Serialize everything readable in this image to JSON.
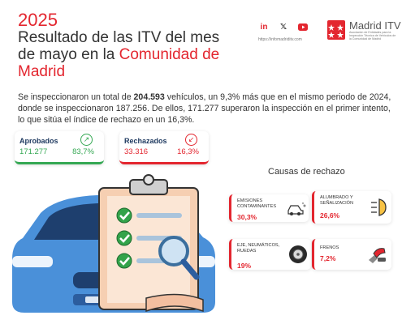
{
  "header": {
    "year": "2025",
    "title_part1": "Resultado de las ITV del mes de mayo en la ",
    "title_highlight": "Comunidad de Madrid"
  },
  "social": {
    "icons": [
      "linkedin-icon",
      "x-icon",
      "youtube-icon"
    ],
    "handle": "https://infomadriditv.com"
  },
  "brand": {
    "name": "Madrid ITV",
    "subtitle": "Asociación de Entidades para la Inspección Técnica de Vehículos de la Comunidad de Madrid"
  },
  "summary": {
    "part1": "Se inspeccionaron un total de ",
    "total": "204.593",
    "part2": " vehículos, un 9,3% más que en el mismo periodo de 2024, donde se inspeccionaron 187.256. De ellos, 171.277 superaron la inspección en el primer intento, lo que sitúa el índice de rechazo en un 16,3%."
  },
  "approved": {
    "label": "Aprobados",
    "value": "171.277",
    "percent": "83,7%",
    "progress": 0.837
  },
  "rejected": {
    "label": "Rechazados",
    "value": "33.316",
    "percent": "16,3%",
    "progress": 0.163
  },
  "causes": {
    "title": "Causas de rechazo",
    "items": [
      {
        "label_line1": "EMISIONES",
        "label_line2": "CONTAMINANTES",
        "label_line3": "",
        "percent": "30,3%",
        "icon": "car-emissions-icon"
      },
      {
        "label_line1": "ALUMBRADO Y",
        "label_line2": "SEÑALIZACIÓN",
        "label_line3": "",
        "percent": "26,6%",
        "icon": "headlight-icon"
      },
      {
        "label_line1": "EJE, NEUMÁTICOS,",
        "label_line2": "RUEDAS",
        "label_line3": "",
        "percent": "19%",
        "icon": "tire-icon"
      },
      {
        "label_line1": "FRENOS",
        "label_line2": "",
        "label_line3": "",
        "percent": "7,2%",
        "icon": "brake-pedal-icon"
      }
    ]
  },
  "colors": {
    "accent": "#e3262f",
    "ok": "#34a853",
    "navy": "#1f3a60",
    "car": "#4a90d9"
  }
}
